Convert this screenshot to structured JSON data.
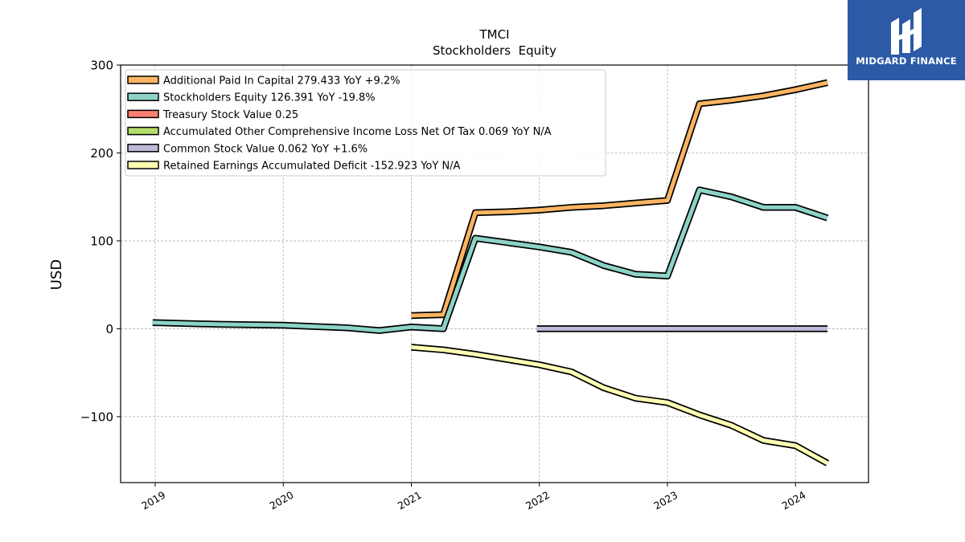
{
  "brand": {
    "name": "MIDGARD FINANCE",
    "color": "#2c5aa6"
  },
  "chart_data": {
    "type": "line",
    "title": "TMCI",
    "subtitle": "Stockholders  Equity",
    "xlabel": "",
    "ylabel": "USD",
    "xlim": [
      2018.73,
      2024.57
    ],
    "ylim": [
      -175,
      300
    ],
    "x_ticks": [
      2019,
      2020,
      2021,
      2022,
      2023,
      2024
    ],
    "y_ticks": [
      -100,
      0,
      100,
      200,
      300
    ],
    "y_tick_labels": [
      "−100",
      "0",
      "100",
      "200",
      "300"
    ],
    "grid": true,
    "legend_position": "top-left",
    "series": [
      {
        "name": "Additional Paid In Capital",
        "legend_label": "Additional Paid In Capital  279.433 YoY +9.2%",
        "color": "#fdb462",
        "x": [
          2021.0,
          2021.25,
          2021.5,
          2021.75,
          2022.0,
          2022.25,
          2022.5,
          2022.75,
          2023.0,
          2023.25,
          2023.5,
          2023.75,
          2024.0,
          2024.25
        ],
        "y": [
          15,
          16,
          132,
          133,
          135,
          138,
          140,
          143,
          146,
          256,
          260,
          265,
          272,
          280
        ]
      },
      {
        "name": "Stockholders Equity",
        "legend_label": "Stockholders Equity  126.391 YoY -19.8%",
        "color": "#8dd3c7",
        "x": [
          2018.98,
          2019.5,
          2020.0,
          2020.5,
          2020.75,
          2021.0,
          2021.25,
          2021.5,
          2021.75,
          2022.0,
          2022.25,
          2022.5,
          2022.75,
          2023.0,
          2023.25,
          2023.5,
          2023.75,
          2024.0,
          2024.25
        ],
        "y": [
          7,
          5,
          4,
          1,
          -2,
          2,
          0,
          103,
          98,
          93,
          87,
          72,
          62,
          60,
          158,
          150,
          138,
          138,
          126
        ]
      },
      {
        "name": "Treasury Stock Value",
        "legend_label": "Treasury Stock Value  0.25",
        "color": "#fb8072",
        "x": [],
        "y": []
      },
      {
        "name": "Accumulated Other Comprehensive Income Loss Net Of Tax",
        "legend_label": "Accumulated Other Comprehensive Income Loss Net Of Tax  0.069 YoY N/A",
        "color": "#b3de69",
        "x": [],
        "y": []
      },
      {
        "name": "Common Stock Value",
        "legend_label": "Common Stock Value  0.062 YoY +1.6%",
        "color": "#bebada",
        "x": [
          2021.98,
          2022.25,
          2022.5,
          2022.75,
          2023.0,
          2023.25,
          2023.5,
          2023.75,
          2024.0,
          2024.25
        ],
        "y": [
          0.06,
          0.06,
          0.06,
          0.06,
          0.06,
          0.06,
          0.06,
          0.06,
          0.06,
          0.062
        ]
      },
      {
        "name": "Retained Earnings Accumulated Deficit",
        "legend_label": "Retained Earnings Accumulated Deficit  -152.923 YoY N/A",
        "color": "#ffffb3",
        "x": [
          2021.0,
          2021.25,
          2021.5,
          2021.75,
          2022.0,
          2022.25,
          2022.5,
          2022.75,
          2023.0,
          2023.25,
          2023.5,
          2023.75,
          2024.0,
          2024.25
        ],
        "y": [
          -21,
          -24,
          -29,
          -35,
          -41,
          -49,
          -67,
          -79,
          -84,
          -98,
          -110,
          -127,
          -133,
          -153
        ]
      }
    ]
  }
}
